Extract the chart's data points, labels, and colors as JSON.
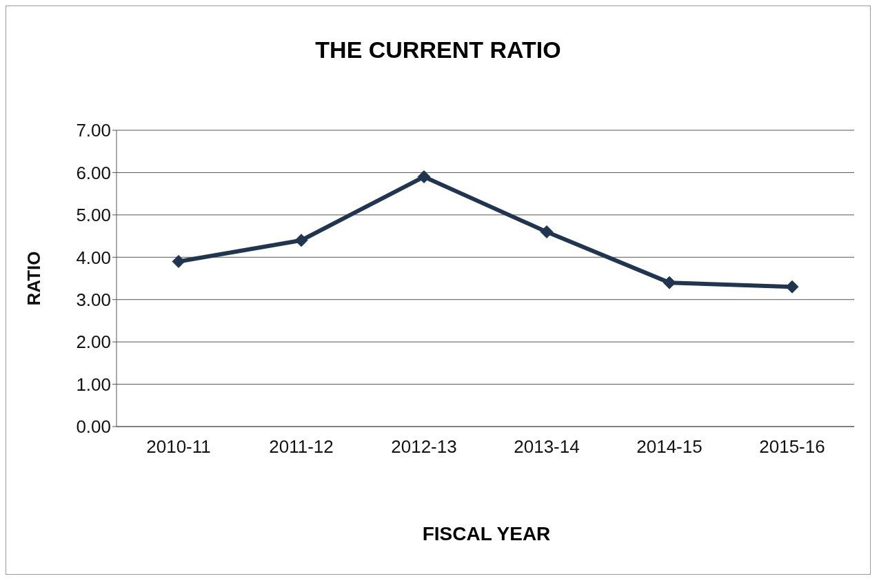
{
  "chart_data": {
    "type": "line",
    "title": "THE CURRENT RATIO",
    "xlabel": "FISCAL YEAR",
    "ylabel": "RATIO",
    "categories": [
      "2010-11",
      "2011-12",
      "2012-13",
      "2013-14",
      "2014-15",
      "2015-16"
    ],
    "series": [
      {
        "color": "#1f3550",
        "values": [
          3.9,
          4.4,
          5.9,
          4.6,
          3.4,
          3.3
        ]
      }
    ],
    "ylim": [
      0,
      7
    ],
    "yticks": [
      {
        "value": 0,
        "label": "0.00"
      },
      {
        "value": 1,
        "label": "1.00"
      },
      {
        "value": 2,
        "label": "2.00"
      },
      {
        "value": 3,
        "label": "3.00"
      },
      {
        "value": 4,
        "label": "4.00"
      },
      {
        "value": 5,
        "label": "5.00"
      },
      {
        "value": 6,
        "label": "6.00"
      },
      {
        "value": 7,
        "label": "7.00"
      }
    ],
    "grid": "y",
    "marker": "diamond",
    "line_style": "solid"
  }
}
